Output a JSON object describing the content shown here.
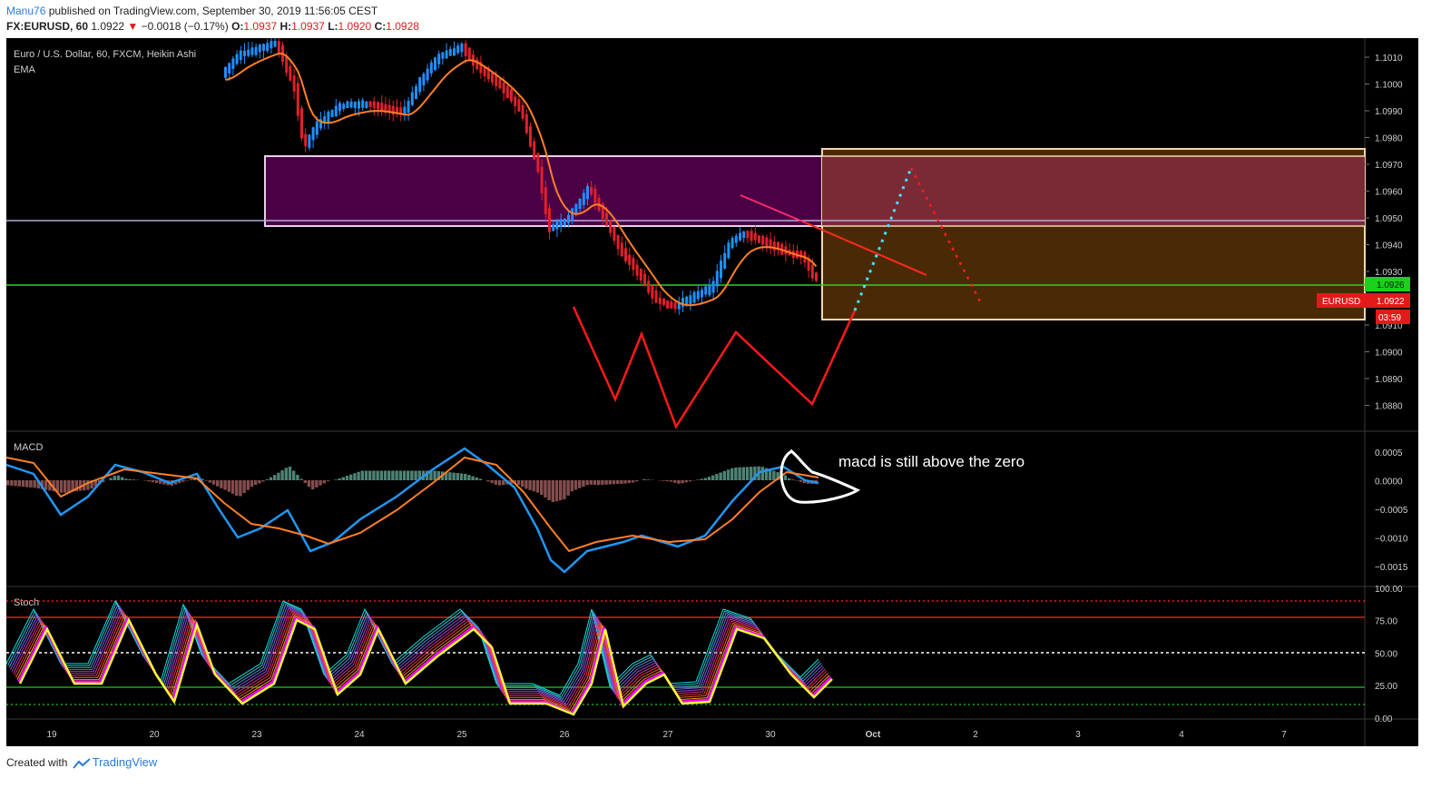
{
  "header": {
    "author": "Manu76",
    "published": " published on TradingView.com, September 30, 2019 11:56:05 CEST",
    "symbol": "FX:EURUSD, 60",
    "price": "1.0922",
    "change_arrow": "▼",
    "change": "−0.0018 (−0.17%)",
    "o_label": "O:",
    "o_val": "1.0937",
    "h_label": "H:",
    "h_val": "1.0937",
    "l_label": "L:",
    "l_val": "1.0920",
    "c_label": "C:",
    "c_val": "1.0928"
  },
  "legend": {
    "title": "Euro / U.S. Dollar, 60, FXCM, Heikin Ashi",
    "ema": "EMA",
    "macd": "MACD",
    "stoch": "Stoch"
  },
  "price_axis": [
    "1.1010",
    "1.1000",
    "1.0990",
    "1.0980",
    "1.0970",
    "1.0960",
    "1.0950",
    "1.0940",
    "1.0930",
    "1.0920",
    "1.0910",
    "1.0900",
    "1.0890",
    "1.0880"
  ],
  "price_tags": {
    "green_level": "1.0926",
    "symbol_tag": "EURUSD",
    "last": "1.0922",
    "countdown": "03:59"
  },
  "macd_axis": [
    "0.0005",
    "0.0000",
    "−0.0005",
    "−0.0010",
    "−0.0015"
  ],
  "stoch_axis": [
    "100.00",
    "75.00",
    "50.00",
    "25.00",
    "0.00"
  ],
  "time_axis": [
    "19",
    "20",
    "23",
    "24",
    "25",
    "26",
    "27",
    "30",
    "Oct",
    "2",
    "3",
    "4",
    "7"
  ],
  "annotation": "macd is still above the zero",
  "footer": {
    "created": "Created with",
    "brand": "TradingView"
  },
  "colors": {
    "up_candle": "#1e90ff",
    "down_candle": "#e0202a",
    "ema": "#ff7f27",
    "zone_purple": "#4b0046",
    "zone_brown": "#4a2a06",
    "zone_red": "#7a2a35",
    "support_green": "#2dd12d",
    "macd_line": "#2196f3",
    "signal_line": "#ff7f27"
  }
}
